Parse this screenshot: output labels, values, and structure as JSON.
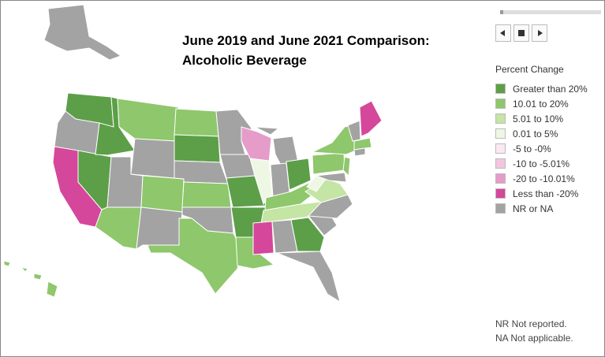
{
  "header": {
    "title_lines": [
      "June 2019 and June 2021 Comparison:",
      "Alcoholic Beverage"
    ]
  },
  "legend": {
    "title": "Percent Change",
    "items": [
      {
        "label": "Greater than 20%",
        "color": "#5c9f48"
      },
      {
        "label": "10.01 to 20%",
        "color": "#8fc76c"
      },
      {
        "label": "5.01 to 10%",
        "color": "#c4e5a3"
      },
      {
        "label": "0.01 to 5%",
        "color": "#eef7e4"
      },
      {
        "label": "-5 to -0%",
        "color": "#fbe8f1"
      },
      {
        "label": "-10 to -5.01%",
        "color": "#f3c6df"
      },
      {
        "label": "-20 to -10.01%",
        "color": "#e59cc8"
      },
      {
        "label": "Less than -20%",
        "color": "#d5479b"
      },
      {
        "label": "NR or NA",
        "color": "#a3a3a3"
      }
    ]
  },
  "notes": [
    "NR Not reported.",
    "NA Not applicable."
  ]
}
